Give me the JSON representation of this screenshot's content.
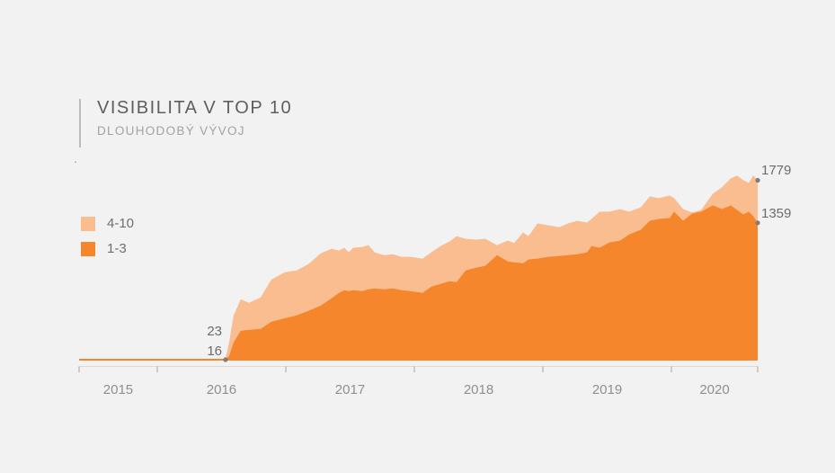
{
  "chart_data": {
    "type": "area",
    "stacked": true,
    "title": "VISIBILITA V TOP 10",
    "subtitle": "DLOUHODOBÝ VÝVOJ",
    "stray_mark": ".",
    "xlabel": "",
    "ylabel": "",
    "grid": false,
    "legend_position": "left",
    "xlim": [
      2015.392,
      2020.671
    ],
    "ylim": [
      0,
      1872
    ],
    "x": [
      2015.392,
      2016.49,
      2016.531,
      2016.559,
      2016.594,
      2016.65,
      2016.713,
      2016.804,
      2016.888,
      2016.993,
      2017.084,
      2017.175,
      2017.273,
      2017.357,
      2017.413,
      2017.455,
      2017.49,
      2017.524,
      2017.594,
      2017.643,
      2017.692,
      2017.762,
      2017.832,
      2017.902,
      2017.972,
      2018.063,
      2018.133,
      2018.203,
      2018.273,
      2018.329,
      2018.399,
      2018.483,
      2018.552,
      2018.643,
      2018.727,
      2018.776,
      2018.846,
      2018.888,
      2018.958,
      2019.042,
      2019.126,
      2019.196,
      2019.266,
      2019.343,
      2019.378,
      2019.441,
      2019.517,
      2019.601,
      2019.671,
      2019.762,
      2019.832,
      2019.902,
      2019.986,
      2020.021,
      2020.091,
      2020.161,
      2020.231,
      2020.322,
      2020.392,
      2020.462,
      2020.51,
      2020.559,
      2020.601,
      2020.636,
      2020.671
    ],
    "series": [
      {
        "name": "1-3",
        "color": "#f6862b",
        "values": [
          0,
          0,
          16,
          44,
          178,
          294,
          303,
          312,
          383,
          418,
          445,
          490,
          543,
          614,
          668,
          694,
          685,
          694,
          685,
          703,
          712,
          703,
          712,
          694,
          685,
          668,
          730,
          757,
          783,
          774,
          890,
          917,
          935,
          1041,
          979,
          970,
          961,
          997,
          1006,
          1024,
          1032,
          1041,
          1050,
          1068,
          1130,
          1113,
          1166,
          1184,
          1246,
          1291,
          1380,
          1397,
          1406,
          1469,
          1380,
          1451,
          1469,
          1531,
          1495,
          1531,
          1486,
          1442,
          1469,
          1424,
          1359
        ]
      },
      {
        "name": "4-10",
        "color": "#f9bd90",
        "values": [
          0,
          0,
          7,
          134,
          267,
          311,
          267,
          311,
          418,
          454,
          445,
          462,
          516,
          490,
          418,
          419,
          383,
          419,
          436,
          436,
          356,
          338,
          338,
          330,
          339,
          338,
          338,
          373,
          392,
          454,
          312,
          276,
          267,
          98,
          205,
          190,
          303,
          231,
          347,
          311,
          285,
          312,
          330,
          294,
          267,
          356,
          303,
          311,
          223,
          222,
          240,
          205,
          223,
          133,
          115,
          10,
          17,
          116,
          214,
          267,
          339,
          338,
          284,
          401,
          420
        ]
      }
    ],
    "x_axis": {
      "boundaries": [
        2015.392,
        2016,
        2017,
        2018,
        2019,
        2020,
        2020.671
      ],
      "labels": [
        "2015",
        "2016",
        "2017",
        "2018",
        "2019",
        "2020"
      ]
    },
    "annotations": {
      "start": {
        "x": 2016.531,
        "total_label": "23",
        "bottom_label": "16"
      },
      "end": {
        "x": 2020.671,
        "total_label": "1779",
        "bottom_label": "1359"
      }
    },
    "marker_color": "#7d7d7d",
    "axis_line_color": "#dadada",
    "tick_color": "#a3a3a3",
    "background_color": "#f2f2f2"
  }
}
